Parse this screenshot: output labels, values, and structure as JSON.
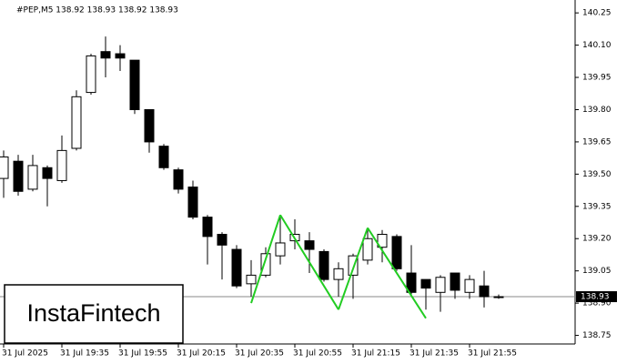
{
  "chart_data": {
    "type": "candlestick",
    "title": "#PEP,M5  138.92 138.93 138.92 138.93",
    "watermark": "InstaFintech",
    "categories": [
      "31 Jul 2025",
      null,
      null,
      null,
      "31 Jul 19:35",
      null,
      null,
      null,
      "31 Jul 19:55",
      null,
      null,
      null,
      "31 Jul 20:15",
      null,
      null,
      null,
      "31 Jul 20:35",
      null,
      null,
      null,
      "31 Jul 20:55",
      null,
      null,
      null,
      "31 Jul 21:15",
      null,
      null,
      null,
      "31 Jul 21:35",
      null,
      null,
      null,
      "31 Jul 21:55",
      null,
      null
    ],
    "open": [
      139.48,
      139.56,
      139.43,
      139.53,
      139.47,
      139.62,
      139.88,
      140.07,
      140.06,
      140.03,
      139.8,
      139.63,
      139.52,
      139.44,
      139.3,
      139.22,
      139.15,
      138.99,
      139.03,
      139.12,
      139.19,
      139.19,
      139.14,
      139.01,
      139.03,
      139.1,
      139.16,
      139.21,
      139.04,
      139.01,
      138.95,
      139.04,
      138.95,
      138.98,
      138.93
    ],
    "high": [
      139.61,
      139.59,
      139.59,
      139.54,
      139.68,
      139.89,
      140.06,
      140.14,
      140.1,
      140.03,
      139.8,
      139.64,
      139.53,
      139.47,
      139.31,
      139.23,
      139.17,
      139.1,
      139.16,
      139.3,
      139.29,
      139.23,
      139.15,
      139.09,
      139.13,
      139.25,
      139.24,
      139.22,
      139.17,
      139.01,
      139.03,
      139.04,
      139.03,
      139.05,
      138.94
    ],
    "low": [
      139.39,
      139.4,
      139.42,
      139.35,
      139.46,
      139.61,
      139.87,
      139.95,
      139.98,
      139.78,
      139.6,
      139.52,
      139.41,
      139.29,
      139.08,
      139.01,
      138.97,
      138.93,
      139.02,
      139.08,
      139.15,
      139.04,
      139.0,
      138.93,
      138.92,
      139.08,
      139.09,
      139.05,
      138.93,
      138.87,
      138.86,
      138.92,
      138.92,
      138.88,
      138.92
    ],
    "close": [
      139.58,
      139.42,
      139.54,
      139.48,
      139.61,
      139.86,
      140.05,
      140.04,
      140.04,
      139.8,
      139.65,
      139.53,
      139.43,
      139.3,
      139.21,
      139.17,
      138.98,
      139.03,
      139.13,
      139.18,
      139.22,
      139.15,
      139.01,
      139.06,
      139.12,
      139.2,
      139.22,
      139.06,
      138.95,
      138.97,
      139.02,
      138.96,
      139.01,
      138.93,
      138.93
    ],
    "bull_color": "#ffffff",
    "bear_color": "#000000",
    "pattern_color": "#22cc22",
    "pattern": [
      null,
      null,
      null,
      null,
      null,
      null,
      null,
      null,
      null,
      null,
      null,
      null,
      null,
      null,
      null,
      null,
      null,
      138.9,
      null,
      139.31,
      null,
      null,
      null,
      138.87,
      null,
      139.25,
      null,
      null,
      null,
      138.83,
      null,
      null,
      null,
      null,
      null
    ],
    "last_price": {
      "value": 138.93,
      "label": "138.93"
    },
    "ylim": [
      138.71,
      140.31
    ],
    "yticks": [
      140.25,
      {
        "value": 140.1,
        "label": "140.10"
      },
      139.95,
      {
        "value": 139.8,
        "label": "139.80"
      },
      139.65,
      {
        "value": 139.5,
        "label": "139.50"
      },
      139.35,
      {
        "value": 139.2,
        "label": "139.20"
      },
      139.05,
      {
        "value": 138.9,
        "label": "138.90"
      },
      138.75
    ]
  }
}
